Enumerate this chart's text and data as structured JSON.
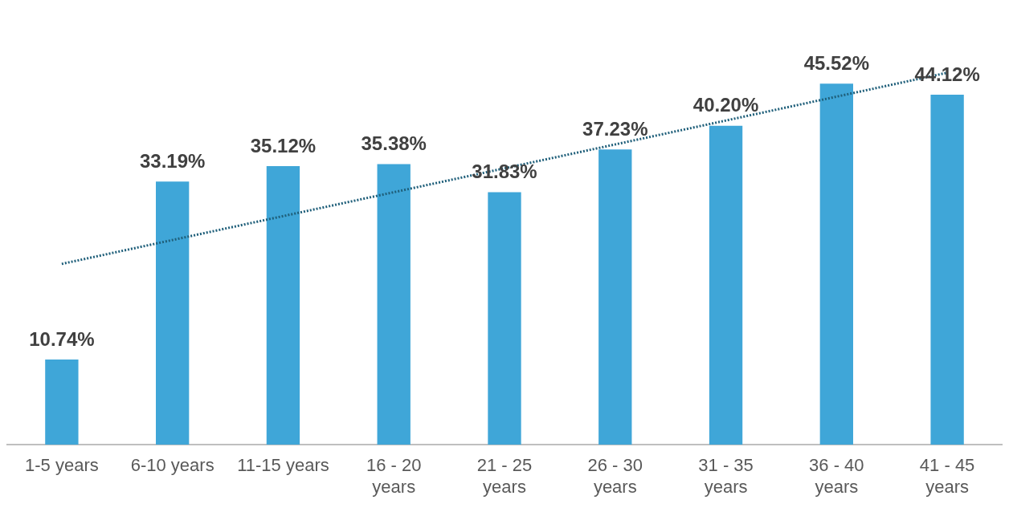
{
  "chart_data": {
    "type": "bar",
    "categories": [
      "1-5 years",
      "6-10 years",
      "11-15 years",
      "16 - 20 years",
      "21 - 25 years",
      "26 - 30 years",
      "31 - 35 years",
      "36 - 40 years",
      "41 - 45 years"
    ],
    "series": [
      {
        "color": "#3fa6d8",
        "values": [
          10.74,
          33.19,
          35.12,
          35.38,
          31.83,
          37.23,
          40.2,
          45.52,
          44.12
        ],
        "value_labels": [
          "10.74%",
          "33.19%",
          "35.12%",
          "35.38%",
          "31.83%",
          "37.23%",
          "40.20%",
          "45.52%",
          "44.12%"
        ]
      },
      {
        "type": "line",
        "color": "#1f5f7a",
        "line_style": "dotted",
        "marker": "none",
        "x": [
          "1-5 years",
          "41 - 45 years"
        ],
        "values": [
          22.8,
          46.9
        ]
      }
    ],
    "tick_labels": "x",
    "grid": false,
    "legend": false
  }
}
